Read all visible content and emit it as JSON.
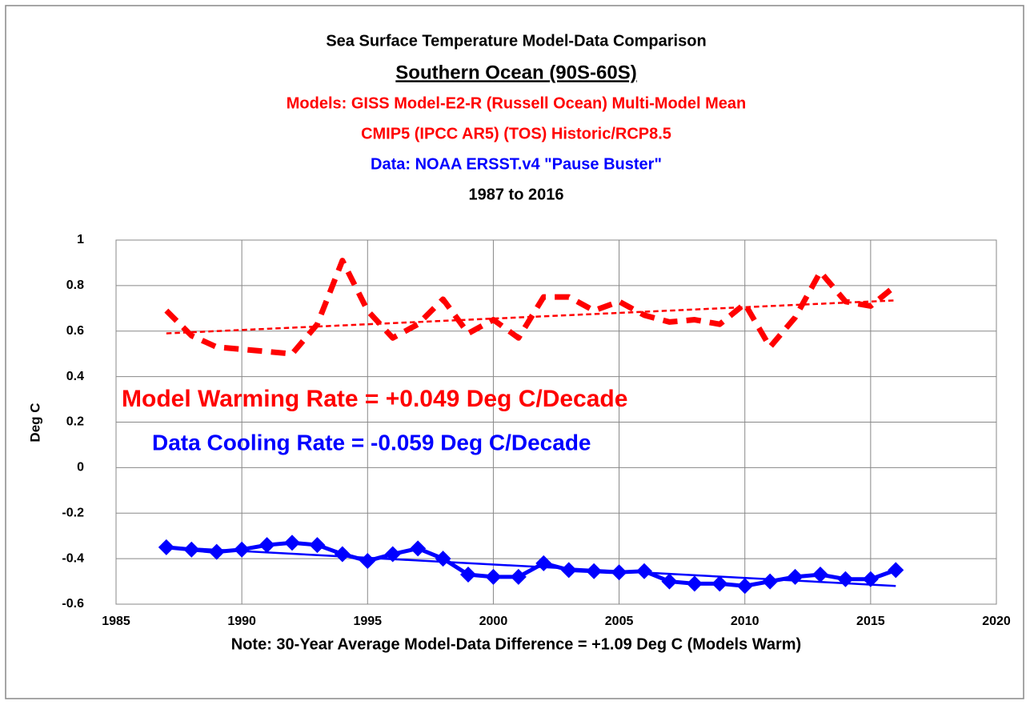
{
  "chart_data": {
    "type": "line",
    "titles": [
      {
        "text": "Sea Surface Temperature Model-Data Comparison",
        "color": "#000000"
      },
      {
        "text": "Southern Ocean (90S-60S)",
        "color": "#000000",
        "underline": true
      },
      {
        "text": "Models: GISS Model-E2-R (Russell Ocean) Multi-Model Mean",
        "color": "#ff0000"
      },
      {
        "text": "CMIP5 (IPCC AR5) (TOS) Historic/RCP8.5",
        "color": "#ff0000"
      },
      {
        "text": "Data: NOAA ERSST.v4 \"Pause Buster\"",
        "color": "#0000ff"
      },
      {
        "text": "1987 to 2016",
        "color": "#000000"
      }
    ],
    "y_label": "Deg C",
    "annotations": [
      {
        "text": "Model Warming Rate = +0.049 Deg C/Decade",
        "color": "#ff0000"
      },
      {
        "text": "Data Cooling Rate = -0.059 Deg C/Decade",
        "color": "#0000ff"
      }
    ],
    "note": "Note: 30-Year Average Model-Data Difference = +1.09 Deg C (Models Warm)",
    "xlim": [
      1985,
      2020
    ],
    "xticks": [
      1985,
      1990,
      1995,
      2000,
      2005,
      2010,
      2015,
      2020
    ],
    "ylim": [
      -0.6,
      1
    ],
    "yticks": [
      -0.6,
      -0.4,
      -0.2,
      0,
      0.2,
      0.4,
      0.6,
      0.8,
      1
    ],
    "grid": true,
    "series": [
      {
        "color": "#ff0000",
        "style": "dashed",
        "width": 7,
        "marker": "none",
        "x": [
          1987,
          1988,
          1989,
          1990,
          1991,
          1992,
          1993,
          1994,
          1995,
          1996,
          1997,
          1998,
          1999,
          2000,
          2001,
          2002,
          2003,
          2004,
          2005,
          2006,
          2007,
          2008,
          2009,
          2010,
          2011,
          2012,
          2013,
          2014,
          2015,
          2016
        ],
        "values": [
          0.69,
          0.58,
          0.53,
          0.52,
          0.51,
          0.5,
          0.63,
          0.91,
          0.69,
          0.57,
          0.63,
          0.74,
          0.59,
          0.65,
          0.57,
          0.75,
          0.75,
          0.69,
          0.73,
          0.67,
          0.64,
          0.65,
          0.63,
          0.72,
          0.53,
          0.66,
          0.86,
          0.73,
          0.71,
          0.8
        ]
      },
      {
        "color": "#ff0000",
        "style": "dashed",
        "width": 2.5,
        "marker": "none",
        "x": [
          1987,
          2016
        ],
        "values": [
          0.59,
          0.735
        ]
      },
      {
        "color": "#0000ff",
        "style": "solid",
        "width": 5,
        "marker": "diamond",
        "x": [
          1987,
          1988,
          1989,
          1990,
          1991,
          1992,
          1993,
          1994,
          1995,
          1996,
          1997,
          1998,
          1999,
          2000,
          2001,
          2002,
          2003,
          2004,
          2005,
          2006,
          2007,
          2008,
          2009,
          2010,
          2011,
          2012,
          2013,
          2014,
          2015,
          2016
        ],
        "values": [
          -0.35,
          -0.36,
          -0.37,
          -0.36,
          -0.34,
          -0.33,
          -0.34,
          -0.38,
          -0.41,
          -0.38,
          -0.355,
          -0.4,
          -0.47,
          -0.48,
          -0.48,
          -0.42,
          -0.45,
          -0.455,
          -0.46,
          -0.455,
          -0.5,
          -0.51,
          -0.51,
          -0.52,
          -0.5,
          -0.48,
          -0.47,
          -0.49,
          -0.49,
          -0.45
        ]
      },
      {
        "color": "#0000ff",
        "style": "solid",
        "width": 2.5,
        "marker": "none",
        "x": [
          1987,
          2016
        ],
        "values": [
          -0.349,
          -0.52
        ]
      }
    ]
  }
}
